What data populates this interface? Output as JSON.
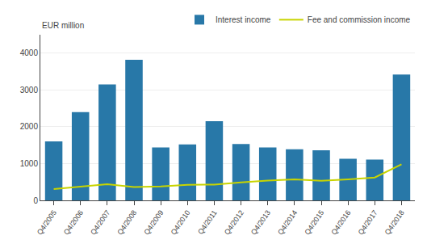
{
  "chart_data": {
    "type": "bar",
    "categories": [
      "Q4/2005",
      "Q4/2006",
      "Q4/2007",
      "Q4/2008",
      "Q4/2009",
      "Q4/2010",
      "Q4/2011",
      "Q4/2012",
      "Q4/2013",
      "Q4/2014",
      "Q4/2015",
      "Q4/2016",
      "Q4/2017",
      "Q4/2018"
    ],
    "series": [
      {
        "name": "Interest income",
        "type": "bar",
        "color": "#2878a8",
        "values": [
          1600,
          2400,
          3150,
          3820,
          1440,
          1520,
          2150,
          1530,
          1440,
          1390,
          1360,
          1130,
          1110,
          3420
        ]
      },
      {
        "name": "Fee and commission income",
        "type": "line",
        "color": "#c8d400",
        "values": [
          310,
          370,
          440,
          360,
          380,
          420,
          430,
          490,
          540,
          570,
          530,
          570,
          620,
          980
        ]
      }
    ],
    "ylabel": "EUR million",
    "ylim": [
      0,
      4500
    ],
    "yticks": [
      0,
      1000,
      2000,
      3000,
      4000
    ],
    "grid": true,
    "legend": "upper right"
  }
}
